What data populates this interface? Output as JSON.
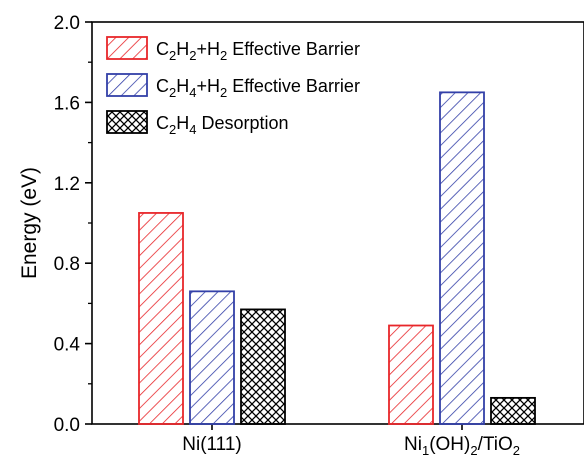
{
  "chart_data": {
    "type": "bar",
    "title": "",
    "xlabel": "",
    "ylabel": "Energy (eV)",
    "ylim": [
      0.0,
      2.0
    ],
    "yticks": [
      "0.0",
      "0.4",
      "0.8",
      "1.2",
      "1.6",
      "2.0"
    ],
    "categories": [
      {
        "base": "Ni(111)",
        "sub": ""
      },
      {
        "base": "Ni",
        "sub": "1",
        "mid": "(OH)",
        "sub2": "2",
        "tail": "/TiO",
        "sub3": "2"
      }
    ],
    "category_labels": [
      "Ni(111)",
      "Ni1(OH)2/TiO2"
    ],
    "series": [
      {
        "name": "C2H2+H2 Effective Barrier",
        "values": [
          1.05,
          0.49
        ],
        "color": "#e8262a",
        "pattern": "diagonal-hatch"
      },
      {
        "name": "C2H4+H2 Effective Barrier",
        "values": [
          0.66,
          1.65
        ],
        "color": "#3340a8",
        "pattern": "diagonal-hatch"
      },
      {
        "name": "C2H4 Desorption",
        "values": [
          0.57,
          0.13
        ],
        "color": "#000000",
        "pattern": "crosshatch"
      }
    ],
    "legend_position": "top-left",
    "grid": false
  }
}
